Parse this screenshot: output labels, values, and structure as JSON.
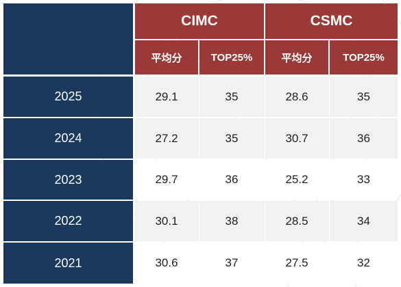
{
  "table": {
    "corner_label": "",
    "groups": [
      {
        "name": "CIMC",
        "columns": [
          "平均分",
          "TOP25%"
        ]
      },
      {
        "name": "CSMC",
        "columns": [
          "平均分",
          "TOP25%"
        ]
      }
    ],
    "rows": [
      {
        "year": "2025",
        "values": [
          "29.1",
          "35",
          "28.6",
          "35"
        ]
      },
      {
        "year": "2024",
        "values": [
          "27.2",
          "35",
          "30.7",
          "36"
        ]
      },
      {
        "year": "2023",
        "values": [
          "29.7",
          "36",
          "25.2",
          "33"
        ]
      },
      {
        "year": "2022",
        "values": [
          "30.1",
          "38",
          "28.5",
          "34"
        ]
      },
      {
        "year": "2021",
        "values": [
          "30.6",
          "37",
          "27.5",
          "32"
        ]
      }
    ],
    "colors": {
      "header_navy": "#1b385e",
      "header_red": "#9a3a38",
      "row_shaded": "#f1f1f1",
      "row_plain": "#ffffff"
    }
  }
}
